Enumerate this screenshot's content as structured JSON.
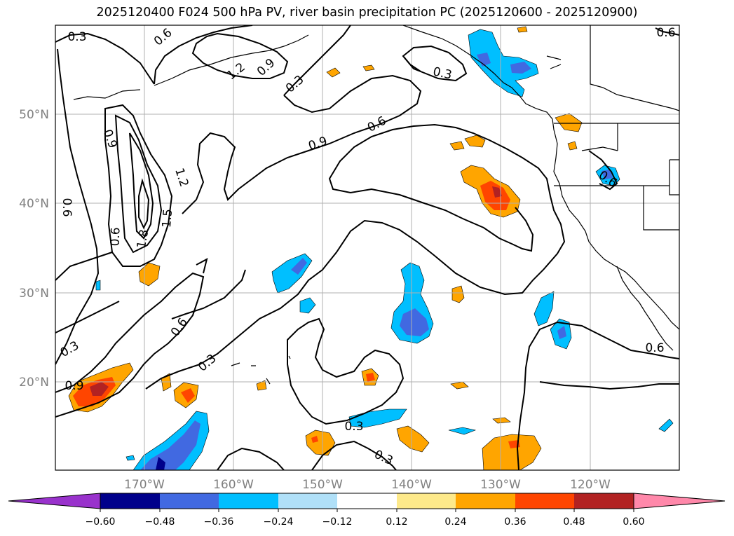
{
  "title": "2025120400 F024 500 hPa PV, river basin precipitation PC (2025120600 - 2025120900)",
  "map": {
    "lon_range": [
      -180,
      -110
    ],
    "lat_range": [
      10,
      60
    ],
    "lat_ticks": [
      {
        "label": "20°N",
        "lat": 20
      },
      {
        "label": "30°N",
        "lat": 30
      },
      {
        "label": "40°N",
        "lat": 40
      },
      {
        "label": "50°N",
        "lat": 50
      }
    ],
    "lon_ticks": [
      {
        "label": "170°W",
        "lon": -170
      },
      {
        "label": "160°W",
        "lon": -160
      },
      {
        "label": "150°W",
        "lon": -150
      },
      {
        "label": "140°W",
        "lon": -140
      },
      {
        "label": "130°W",
        "lon": -130
      },
      {
        "label": "120°W",
        "lon": -120
      }
    ],
    "contour_labels": [
      "0.3",
      "0.6",
      "1.2",
      "0.9",
      "0.3",
      "0.3",
      "0.6",
      "0.6",
      "0.9",
      "0.9",
      "1.2",
      "1.5",
      "1.8",
      "0.6",
      "0.6",
      "0.3",
      "0.3",
      "0.9",
      "0.3",
      "0.3",
      "0.6",
      "0.6",
      "0.6"
    ],
    "colors": {
      "grid": "#b0b0b0",
      "contour": "#000000",
      "pos_024": "#ffa500",
      "pos_036": "#ff4500",
      "pos_048": "#b22222",
      "neg_024": "#00bfff",
      "neg_036": "#4169e1",
      "neg_048": "#00008b"
    }
  },
  "colorbar": {
    "ticks": [
      "−0.60",
      "−0.48",
      "−0.36",
      "−0.24",
      "−0.12",
      "0.12",
      "0.24",
      "0.36",
      "0.48",
      "0.60"
    ],
    "colors": [
      "#9932cc",
      "#00008b",
      "#4169e1",
      "#00bfff",
      "#b0e0f8",
      "#ffffff",
      "#fde98a",
      "#ffa500",
      "#ff4500",
      "#b22222",
      "#ff88aa"
    ]
  }
}
